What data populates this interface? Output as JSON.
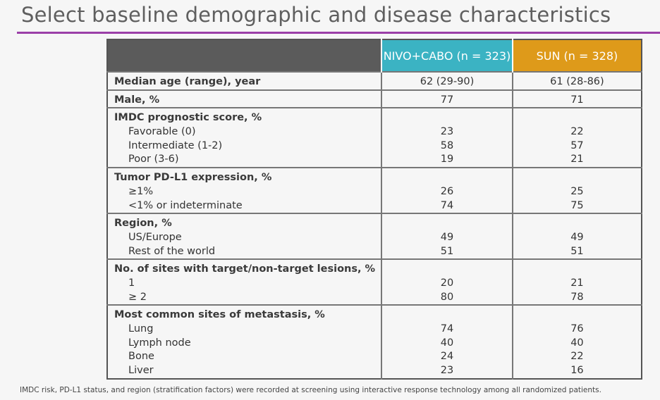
{
  "slide": {
    "title": "Select baseline demographic and disease characteristics",
    "footnote": "IMDC risk, PD-L1 status, and region (stratification factors) were recorded at screening using interactive response technology among all randomized patients."
  },
  "table": {
    "header": {
      "col1": "",
      "col2": "NIVO+CABO (n = 323)",
      "col3": "SUN (n = 328)"
    },
    "colors": {
      "header_dark": "#5b5b5b",
      "nivo": "#3bb3c3",
      "sun": "#de9a1a",
      "rule": "#9b3fa8"
    },
    "groups": [
      {
        "rows": [
          {
            "label": "Median age (range), year",
            "bold": true,
            "nivo": "62 (29-90)",
            "sun": "61 (28-86)"
          }
        ]
      },
      {
        "rows": [
          {
            "label": "Male, %",
            "bold": true,
            "nivo": "77",
            "sun": "71"
          }
        ]
      },
      {
        "rows": [
          {
            "label": "IMDC prognostic score, %",
            "bold": true,
            "nivo": "",
            "sun": ""
          },
          {
            "label": "Favorable (0)",
            "nivo": "23",
            "sun": "22"
          },
          {
            "label": "Intermediate (1-2)",
            "nivo": "58",
            "sun": "57"
          },
          {
            "label": "Poor (3-6)",
            "nivo": "19",
            "sun": "21"
          }
        ]
      },
      {
        "rows": [
          {
            "label": "Tumor PD-L1 expression, %",
            "bold": true,
            "nivo": "",
            "sun": ""
          },
          {
            "label": "≥1%",
            "nivo": "26",
            "sun": "25"
          },
          {
            "label": "<1% or indeterminate",
            "nivo": "74",
            "sun": "75"
          }
        ]
      },
      {
        "rows": [
          {
            "label": "Region, %",
            "bold": true,
            "nivo": "",
            "sun": ""
          },
          {
            "label": "US/Europe",
            "nivo": "49",
            "sun": "49"
          },
          {
            "label": "Rest of the world",
            "nivo": "51",
            "sun": "51"
          }
        ]
      },
      {
        "rows": [
          {
            "label": "No. of sites with target/non-target lesions, %",
            "bold": true,
            "nivo": "",
            "sun": ""
          },
          {
            "label": "1",
            "nivo": "20",
            "sun": "21"
          },
          {
            "label": "≥ 2",
            "nivo": "80",
            "sun": "78"
          }
        ]
      },
      {
        "rows": [
          {
            "label": "Most common sites of metastasis, %",
            "bold": true,
            "nivo": "",
            "sun": ""
          },
          {
            "label": "Lung",
            "nivo": "74",
            "sun": "76"
          },
          {
            "label": "Lymph node",
            "nivo": "40",
            "sun": "40"
          },
          {
            "label": "Bone",
            "nivo": "24",
            "sun": "22"
          },
          {
            "label": "Liver",
            "nivo": "23",
            "sun": "16"
          }
        ]
      }
    ]
  }
}
